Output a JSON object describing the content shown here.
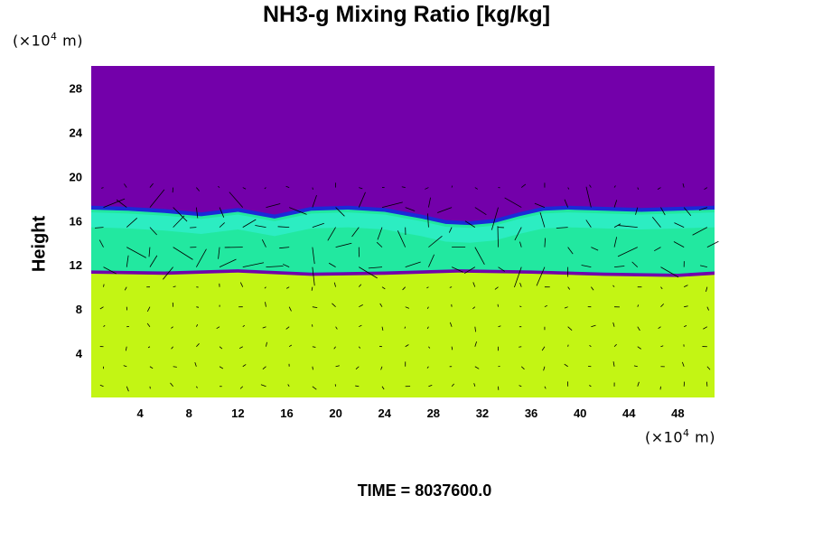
{
  "chart_data": {
    "type": "heatmap",
    "title": "NH3-g Mixing Ratio [kg/kg]",
    "ylabel": "Height",
    "y_unit": {
      "prefix": "(×10",
      "exp": "4",
      "suffix": " m)"
    },
    "x_unit": {
      "prefix": "(×10",
      "exp": "4",
      "suffix": " m)"
    },
    "x_ticks": [
      4,
      8,
      12,
      16,
      20,
      24,
      28,
      32,
      36,
      40,
      44,
      48
    ],
    "y_ticks": [
      4,
      8,
      12,
      16,
      20,
      24,
      28
    ],
    "xlim": [
      0,
      51
    ],
    "ylim": [
      0,
      30
    ],
    "layers": [
      {
        "name": "upper",
        "from": 17,
        "to": 30,
        "color": "#7300aa"
      },
      {
        "name": "cloud",
        "from": 11,
        "to": 17,
        "color": "#22e8a0"
      },
      {
        "name": "lower",
        "from": 0,
        "to": 11,
        "color": "#c3f514"
      }
    ],
    "cloud_top": [
      [
        0,
        17.0
      ],
      [
        3,
        16.9
      ],
      [
        6,
        16.7
      ],
      [
        9,
        16.4
      ],
      [
        12,
        16.8
      ],
      [
        15,
        16.2
      ],
      [
        18,
        16.9
      ],
      [
        21,
        17.0
      ],
      [
        24,
        16.8
      ],
      [
        27,
        16.2
      ],
      [
        29,
        15.7
      ],
      [
        31,
        15.6
      ],
      [
        33,
        15.8
      ],
      [
        35,
        16.4
      ],
      [
        37,
        16.9
      ],
      [
        39,
        17.0
      ],
      [
        42,
        16.9
      ],
      [
        45,
        16.8
      ],
      [
        48,
        16.9
      ],
      [
        51,
        17.0
      ]
    ],
    "cloud_base": [
      [
        0,
        11.5
      ],
      [
        6,
        11.4
      ],
      [
        12,
        11.6
      ],
      [
        18,
        11.3
      ],
      [
        24,
        11.4
      ],
      [
        30,
        11.6
      ],
      [
        36,
        11.5
      ],
      [
        42,
        11.3
      ],
      [
        48,
        11.2
      ],
      [
        51,
        11.4
      ]
    ],
    "time_label": "TIME = 8037600.0"
  }
}
